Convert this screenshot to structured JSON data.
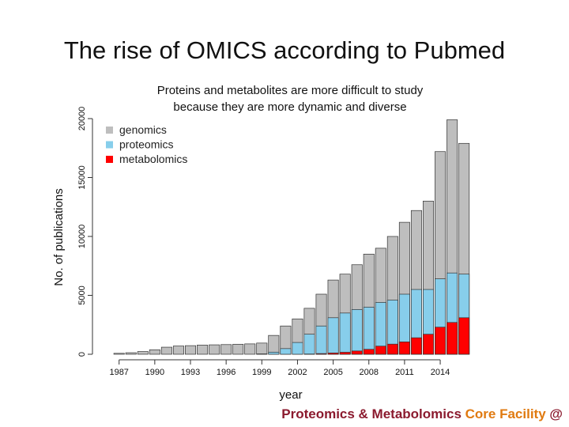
{
  "slide": {
    "title": "The rise of OMICS according to Pubmed",
    "subtitle_line1": "Proteins and metabolites are more difficult to study",
    "subtitle_line2": "because they are more dynamic and diverse",
    "footer_part1": "Proteomics & Metabolomics",
    "footer_part2": "Core Facility",
    "footer_part3": "@"
  },
  "colors": {
    "genomics": "#bebebe",
    "proteomics": "#87ceeb",
    "metabolomics": "#ff0000"
  },
  "chart_data": {
    "type": "bar",
    "stacked": false,
    "overlapping": true,
    "xlabel": "year",
    "ylabel": "No. of publications",
    "ylim": [
      0,
      20000
    ],
    "yticks": [
      0,
      5000,
      10000,
      15000,
      20000
    ],
    "categories": [
      1986,
      1987,
      1988,
      1989,
      1990,
      1991,
      1992,
      1993,
      1994,
      1995,
      1996,
      1997,
      1998,
      1999,
      2000,
      2001,
      2002,
      2003,
      2004,
      2005,
      2006,
      2007,
      2008,
      2009,
      2010,
      2011,
      2012,
      2013,
      2014,
      2015,
      2016
    ],
    "xtick_labels": [
      "1987",
      "1990",
      "1993",
      "1996",
      "1999",
      "2002",
      "2005",
      "2008",
      "2011",
      "2014"
    ],
    "legend_position": "top-left",
    "series": [
      {
        "name": "genomics",
        "values": [
          0,
          80,
          130,
          230,
          380,
          600,
          700,
          730,
          780,
          800,
          820,
          850,
          880,
          950,
          1600,
          2400,
          3000,
          3900,
          5100,
          6300,
          6800,
          7600,
          8500,
          9000,
          10000,
          11200,
          12200,
          13000,
          17200,
          19900,
          17900
        ]
      },
      {
        "name": "proteomics",
        "values": [
          0,
          0,
          0,
          0,
          0,
          0,
          0,
          0,
          0,
          0,
          0,
          0,
          0,
          30,
          180,
          480,
          1000,
          1700,
          2400,
          3100,
          3500,
          3800,
          4000,
          4400,
          4600,
          5100,
          5500,
          5500,
          6400,
          6900,
          6800
        ]
      },
      {
        "name": "metabolomics",
        "values": [
          0,
          0,
          0,
          0,
          0,
          0,
          0,
          0,
          0,
          0,
          0,
          0,
          0,
          0,
          0,
          0,
          0,
          20,
          60,
          110,
          170,
          280,
          420,
          690,
          860,
          1050,
          1400,
          1700,
          2300,
          2700,
          3100
        ]
      }
    ]
  }
}
